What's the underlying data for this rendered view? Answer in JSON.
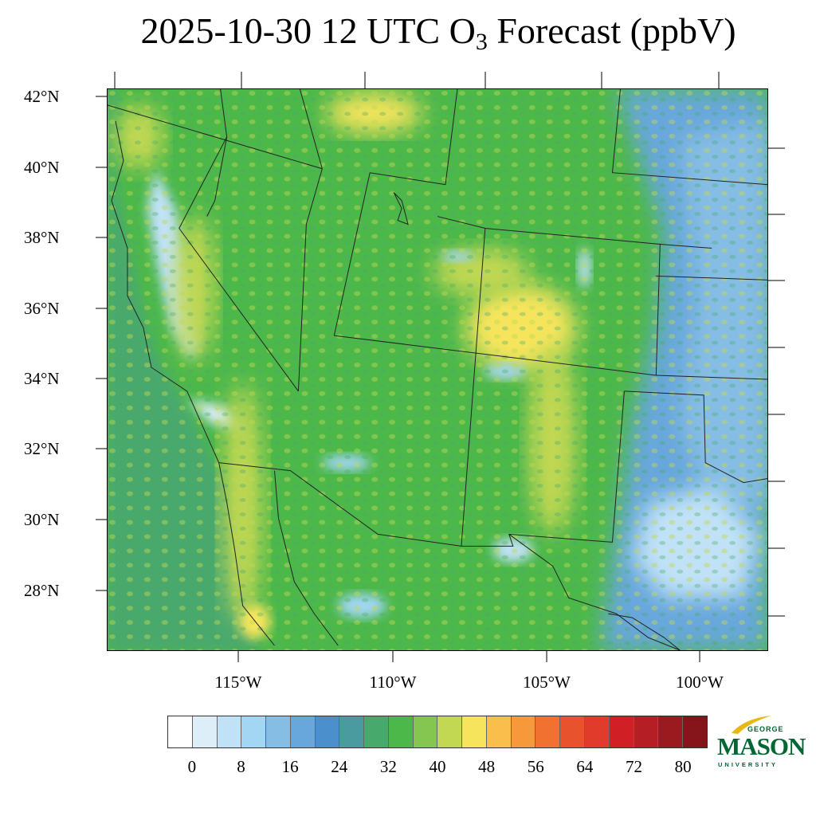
{
  "title": {
    "prefix": "2025-10-30 12 UTC O",
    "subscript": "3",
    "suffix": " Forecast (ppbV)"
  },
  "map": {
    "latitude_labels": [
      "42°N",
      "40°N",
      "38°N",
      "36°N",
      "34°N",
      "32°N",
      "30°N",
      "28°N"
    ],
    "longitude_labels": [
      "115°W",
      "110°W",
      "105°W",
      "100°W"
    ]
  },
  "colorbar": {
    "colors": [
      "#ffffff",
      "#ddeef9",
      "#c1e2f6",
      "#a2d6f3",
      "#86bde4",
      "#67a7dc",
      "#4b8fcd",
      "#4a9ba0",
      "#48a96d",
      "#4db84a",
      "#85c650",
      "#c2d853",
      "#f6e55c",
      "#f9be4b",
      "#f7983b",
      "#f17130",
      "#e8532d",
      "#e03b2b",
      "#d11f26",
      "#b51e25",
      "#9a1a1f",
      "#86151b"
    ],
    "labels": [
      "0",
      "8",
      "16",
      "24",
      "32",
      "40",
      "48",
      "56",
      "64",
      "72",
      "80"
    ]
  },
  "logo": {
    "top_text": "GEORGE",
    "main_text": "MASON",
    "bottom_text": "UNIVERSITY",
    "brand_color": "#006633",
    "accent_color": "#e8b914"
  }
}
